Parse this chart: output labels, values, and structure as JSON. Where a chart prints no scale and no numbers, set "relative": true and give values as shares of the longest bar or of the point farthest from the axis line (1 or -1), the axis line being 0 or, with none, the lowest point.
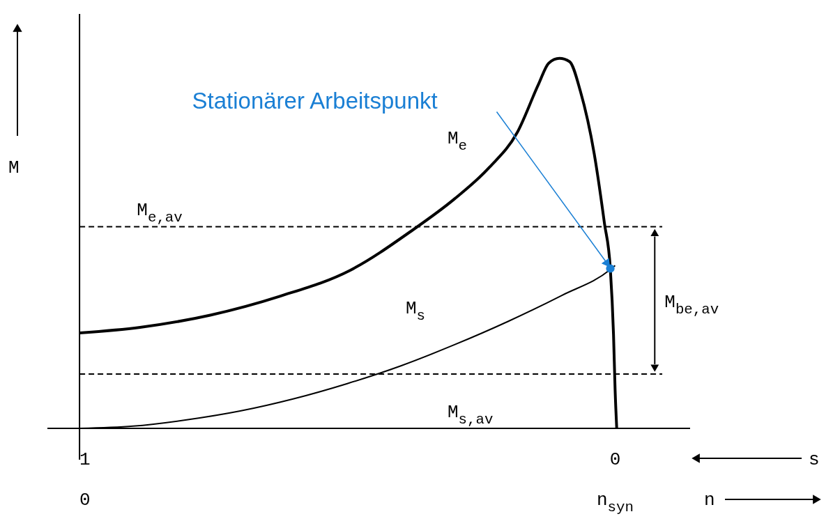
{
  "chart_data": {
    "type": "line",
    "relative": true,
    "x2label": "n",
    "ylabel": "M",
    "xlim": [
      1.06,
      -0.14
    ],
    "xticks": [
      1,
      0
    ],
    "legend": false,
    "line_style": "solid",
    "series": [
      {
        "name": "M$_{e}$",
        "color": "#000000",
        "x": [
          1,
          0.887,
          0.756,
          0.626,
          0.495,
          0.378,
          0.3,
          0.235,
          0.183,
          0.143,
          0.124,
          0.104,
          0.085,
          0.065,
          0.039,
          0.02,
          0.009,
          0.003,
          0,
          -0.003
        ],
        "values": [
          0.258,
          0.273,
          0.306,
          0.357,
          0.427,
          0.536,
          0.62,
          0.705,
          0.799,
          0.93,
          0.987,
          1.0,
          0.991,
          0.912,
          0.742,
          0.555,
          0.432,
          0.254,
          0.103,
          0
        ]
      },
      {
        "name": "M$_{s}$",
        "color": "#000000",
        "x": [
          1,
          0.9,
          0.8,
          0.7,
          0.6,
          0.5,
          0.4,
          0.3,
          0.2,
          0.1,
          0.009,
          0
        ],
        "values": [
          0,
          0.006,
          0.023,
          0.047,
          0.08,
          0.121,
          0.169,
          0.226,
          0.289,
          0.359,
          0.429,
          0.44
        ]
      },
      {
        "type": "scatter",
        "marker": "circle",
        "color": "#1a7fd4",
        "x": [
          0.009
        ],
        "values": [
          0.432
        ]
      }
    ],
    "ref_lines": [
      {
        "axis": "y",
        "value": 0.545,
        "label": "M$_{e,av}$",
        "line_style": "dashed"
      },
      {
        "axis": "y",
        "value": 0.147,
        "label": "M$_{s,av}$",
        "line_style": "dashed"
      }
    ],
    "annotations": [
      "Stationärer Arbeitspunkt",
      "M$_{be,av}$",
      "0",
      "n$_{syn}$",
      "s"
    ]
  }
}
